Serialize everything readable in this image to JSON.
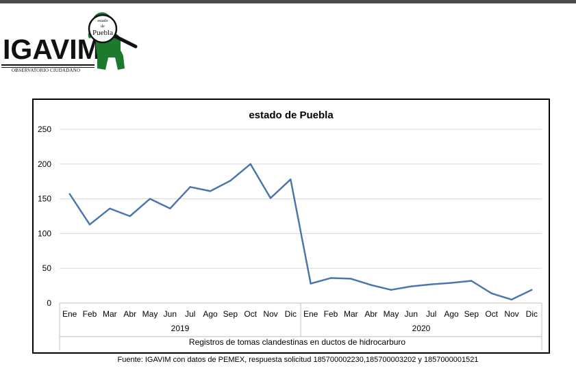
{
  "logo": {
    "name": "IGAVIM",
    "subtitle": "OBSERVATORIO CIUDADANO",
    "badge_line1": "estado",
    "badge_line2": "de",
    "badge_line3": "Puebla"
  },
  "footer": {
    "source": "Fuente: IGAVIM con datos de PEMEX, respuesta solicitud 185700002230,185700003202 y 1857000001521"
  },
  "colors": {
    "line": "#4a76ad",
    "grid": "#d9d9d9",
    "logo_green": "#1c7a2c"
  },
  "chart_data": {
    "type": "line",
    "title": "estado de Puebla",
    "categories": [
      "Ene",
      "Feb",
      "Mar",
      "Abr",
      "May",
      "Jun",
      "Jul",
      "Ago",
      "Sep",
      "Oct",
      "Nov",
      "Dic",
      "Ene",
      "Feb",
      "Mar",
      "Abr",
      "May",
      "Jun",
      "Jul",
      "Ago",
      "Sep",
      "Oct",
      "Nov",
      "Dic"
    ],
    "groups": [
      {
        "label": "2019",
        "count": 12
      },
      {
        "label": "2020",
        "count": 12
      }
    ],
    "xlabel": "Registros de tomas clandestinas  en ductos de hidrocarburo",
    "ylabel": "",
    "ylim": [
      0,
      250
    ],
    "yticks": [
      0,
      50,
      100,
      150,
      200,
      250
    ],
    "grid": true,
    "legend": "none",
    "series": [
      {
        "values": [
          157,
          113,
          136,
          125,
          150,
          136,
          167,
          161,
          176,
          200,
          151,
          178,
          28,
          36,
          35,
          26,
          19,
          24,
          27,
          29,
          32,
          14,
          5,
          19
        ]
      }
    ]
  }
}
